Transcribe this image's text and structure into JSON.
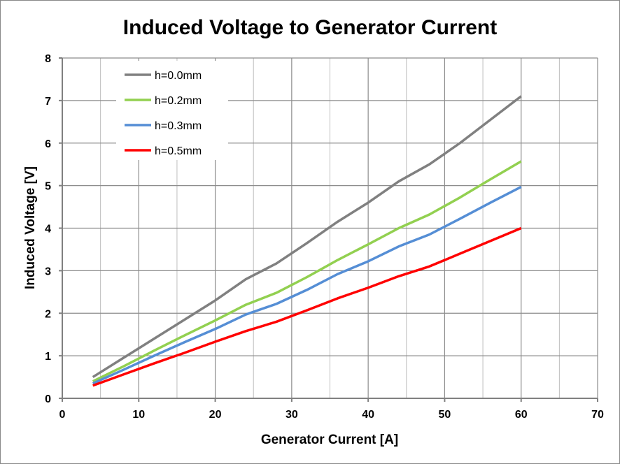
{
  "chart_data": {
    "type": "line",
    "title": "Induced Voltage to Generator Current",
    "xlabel": "Generator Current [A]",
    "ylabel": "Induced Voltage [V]",
    "xlim": [
      0,
      70
    ],
    "ylim": [
      0,
      8
    ],
    "xticks": [
      0,
      10,
      20,
      30,
      40,
      50,
      60,
      70
    ],
    "yticks": [
      0,
      1,
      2,
      3,
      4,
      5,
      6,
      7,
      8
    ],
    "grid": true,
    "legend_position": "top-left",
    "x": [
      4,
      8,
      12,
      16,
      20,
      24,
      28,
      32,
      36,
      40,
      44,
      48,
      52,
      56,
      60
    ],
    "series": [
      {
        "name": "h=0.0mm",
        "color": "#808080",
        "values": [
          0.5,
          0.95,
          1.4,
          1.85,
          2.3,
          2.8,
          3.17,
          3.65,
          4.15,
          4.6,
          5.1,
          5.5,
          6.0,
          6.55,
          7.1
        ]
      },
      {
        "name": "h=0.2mm",
        "color": "#92D050",
        "values": [
          0.4,
          0.75,
          1.12,
          1.48,
          1.83,
          2.2,
          2.48,
          2.85,
          3.25,
          3.62,
          4.0,
          4.32,
          4.72,
          5.15,
          5.57
        ]
      },
      {
        "name": "h=0.3mm",
        "color": "#558ED5",
        "values": [
          0.35,
          0.67,
          1.0,
          1.32,
          1.63,
          1.97,
          2.22,
          2.55,
          2.92,
          3.22,
          3.57,
          3.85,
          4.22,
          4.6,
          4.97
        ]
      },
      {
        "name": "h=0.5mm",
        "color": "#FF0000",
        "values": [
          0.3,
          0.56,
          0.82,
          1.07,
          1.33,
          1.58,
          1.8,
          2.07,
          2.35,
          2.6,
          2.87,
          3.1,
          3.4,
          3.7,
          4.0
        ]
      }
    ]
  }
}
